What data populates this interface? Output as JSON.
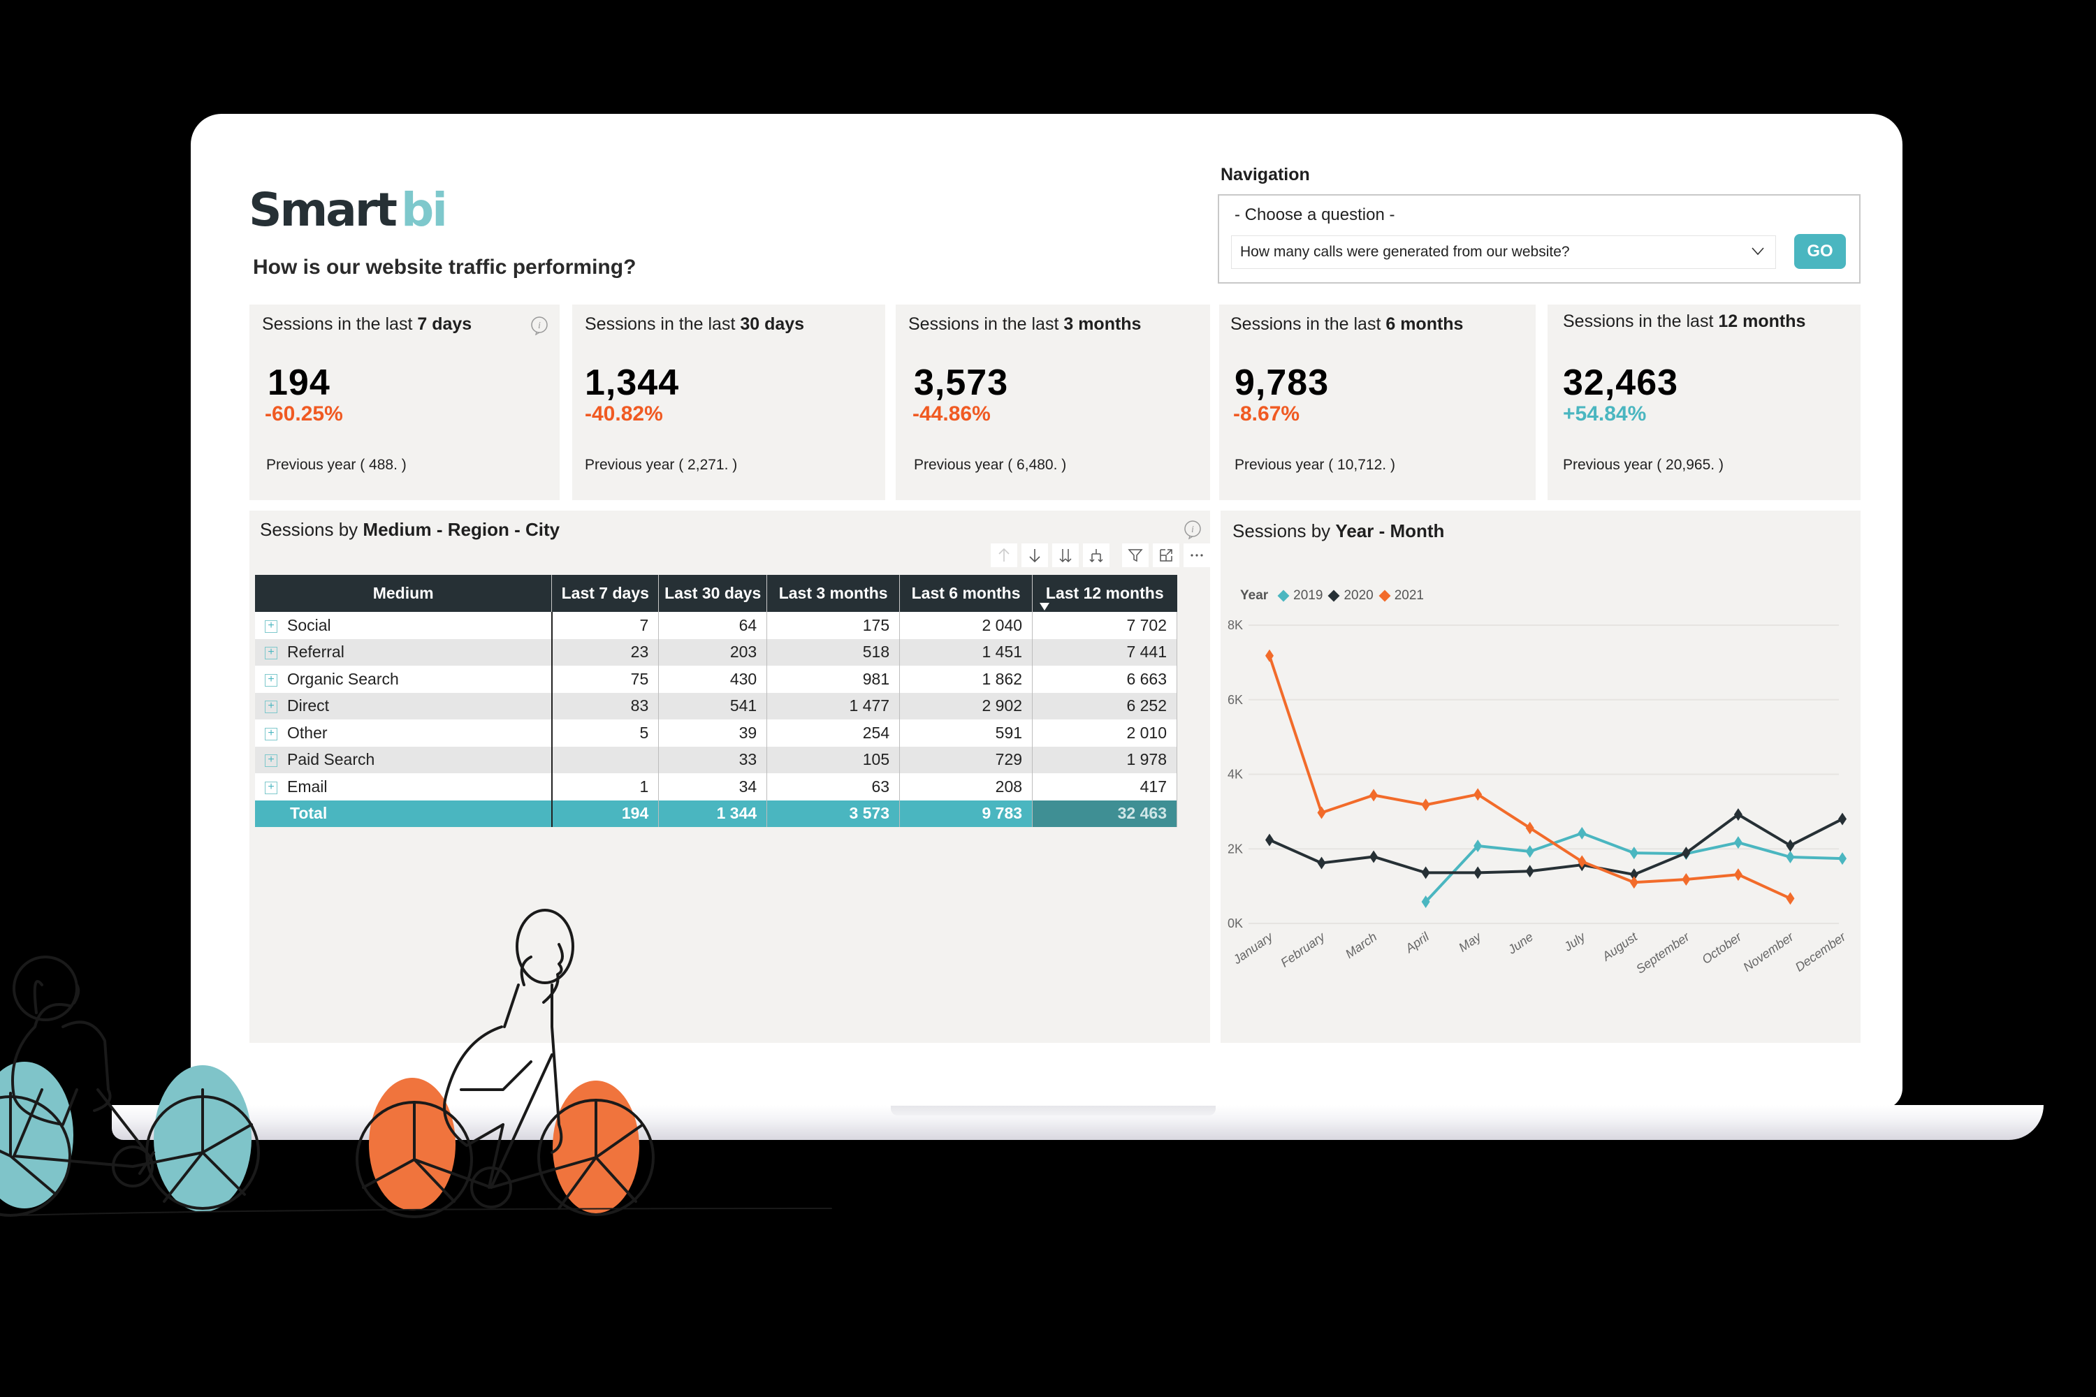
{
  "brand": {
    "name_main": "Smart",
    "name_accent": "bi"
  },
  "page_title": "How is our website traffic performing?",
  "navigation": {
    "label": "Navigation",
    "choose_label": "- Choose a question -",
    "selected_question": "How many calls were generated from our website?",
    "go_label": "GO"
  },
  "kpis": [
    {
      "title_prefix": "Sessions in the last ",
      "title_bold": "7 days",
      "value": "194",
      "change": "-60.25%",
      "change_dir": "down",
      "previous": "Previous year ( 488. )"
    },
    {
      "title_prefix": "Sessions in the last ",
      "title_bold": "30 days",
      "value": "1,344",
      "change": "-40.82%",
      "change_dir": "down",
      "previous": "Previous year ( 2,271. )"
    },
    {
      "title_prefix": "Sessions in the last ",
      "title_bold": "3 months",
      "value": "3,573",
      "change": "-44.86%",
      "change_dir": "down",
      "previous": "Previous year ( 6,480. )"
    },
    {
      "title_prefix": "Sessions in the last ",
      "title_bold": "6 months",
      "value": "9,783",
      "change": "-8.67%",
      "change_dir": "down",
      "previous": "Previous year ( 10,712. )"
    },
    {
      "title_prefix": "Sessions in the last ",
      "title_bold": "12 months",
      "value": "32,463",
      "change": "+54.84%",
      "change_dir": "up",
      "previous": "Previous year ( 20,965. )"
    }
  ],
  "table_panel": {
    "title_prefix": "Sessions by ",
    "title_bold": "Medium - Region - City",
    "toolbar": [
      "arrow-up-icon",
      "arrow-down-icon",
      "double-arrow-down-icon",
      "expand-hierarchy-icon",
      "filter-icon",
      "focus-mode-icon",
      "more-options-icon"
    ],
    "columns": [
      "Medium",
      "Last 7 days",
      "Last 30 days",
      "Last 3 months",
      "Last 6 months",
      "Last 12 months"
    ],
    "rows": [
      {
        "medium": "Social",
        "d7": "7",
        "d30": "64",
        "m3": "175",
        "m6": "2 040",
        "m12": "7 702"
      },
      {
        "medium": "Referral",
        "d7": "23",
        "d30": "203",
        "m3": "518",
        "m6": "1 451",
        "m12": "7 441"
      },
      {
        "medium": "Organic Search",
        "d7": "75",
        "d30": "430",
        "m3": "981",
        "m6": "1 862",
        "m12": "6 663"
      },
      {
        "medium": "Direct",
        "d7": "83",
        "d30": "541",
        "m3": "1 477",
        "m6": "2 902",
        "m12": "6 252"
      },
      {
        "medium": "Other",
        "d7": "5",
        "d30": "39",
        "m3": "254",
        "m6": "591",
        "m12": "2 010"
      },
      {
        "medium": "Paid Search",
        "d7": "",
        "d30": "33",
        "m3": "105",
        "m6": "729",
        "m12": "1 978"
      },
      {
        "medium": "Email",
        "d7": "1",
        "d30": "34",
        "m3": "63",
        "m6": "208",
        "m12": "417"
      }
    ],
    "total": {
      "medium": "Total",
      "d7": "194",
      "d30": "1 344",
      "m3": "3 573",
      "m6": "9 783",
      "m12": "32 463"
    }
  },
  "chart_panel": {
    "title_prefix": "Sessions by ",
    "title_bold": "Year - Month",
    "legend_title": "Year"
  },
  "colors": {
    "accent_teal": "#4ab6c0",
    "dark": "#263035",
    "orange": "#f26b2a",
    "negative": "#f05a22",
    "positive": "#4ab6c0",
    "panel_bg": "#f3f2f0"
  },
  "chart_data": {
    "type": "line",
    "title": "Sessions by Year - Month",
    "xlabel": "",
    "ylabel": "",
    "categories": [
      "January",
      "February",
      "March",
      "April",
      "May",
      "June",
      "July",
      "August",
      "September",
      "October",
      "November",
      "December"
    ],
    "y_ticks": [
      "0K",
      "2K",
      "4K",
      "6K",
      "8K"
    ],
    "ylim": [
      0,
      8000
    ],
    "grid": true,
    "legend_position": "top-left",
    "series": [
      {
        "name": "2019",
        "color": "#4ab6c0",
        "values": [
          null,
          null,
          null,
          580,
          2080,
          1930,
          2420,
          1890,
          1870,
          2170,
          1780,
          1740
        ]
      },
      {
        "name": "2020",
        "color": "#263035",
        "values": [
          2240,
          1620,
          1790,
          1360,
          1360,
          1400,
          1570,
          1310,
          1890,
          2920,
          2090,
          2800
        ]
      },
      {
        "name": "2021",
        "color": "#f26b2a",
        "values": [
          7180,
          2970,
          3440,
          3180,
          3460,
          2560,
          1660,
          1100,
          1180,
          1310,
          670,
          null
        ]
      }
    ]
  }
}
